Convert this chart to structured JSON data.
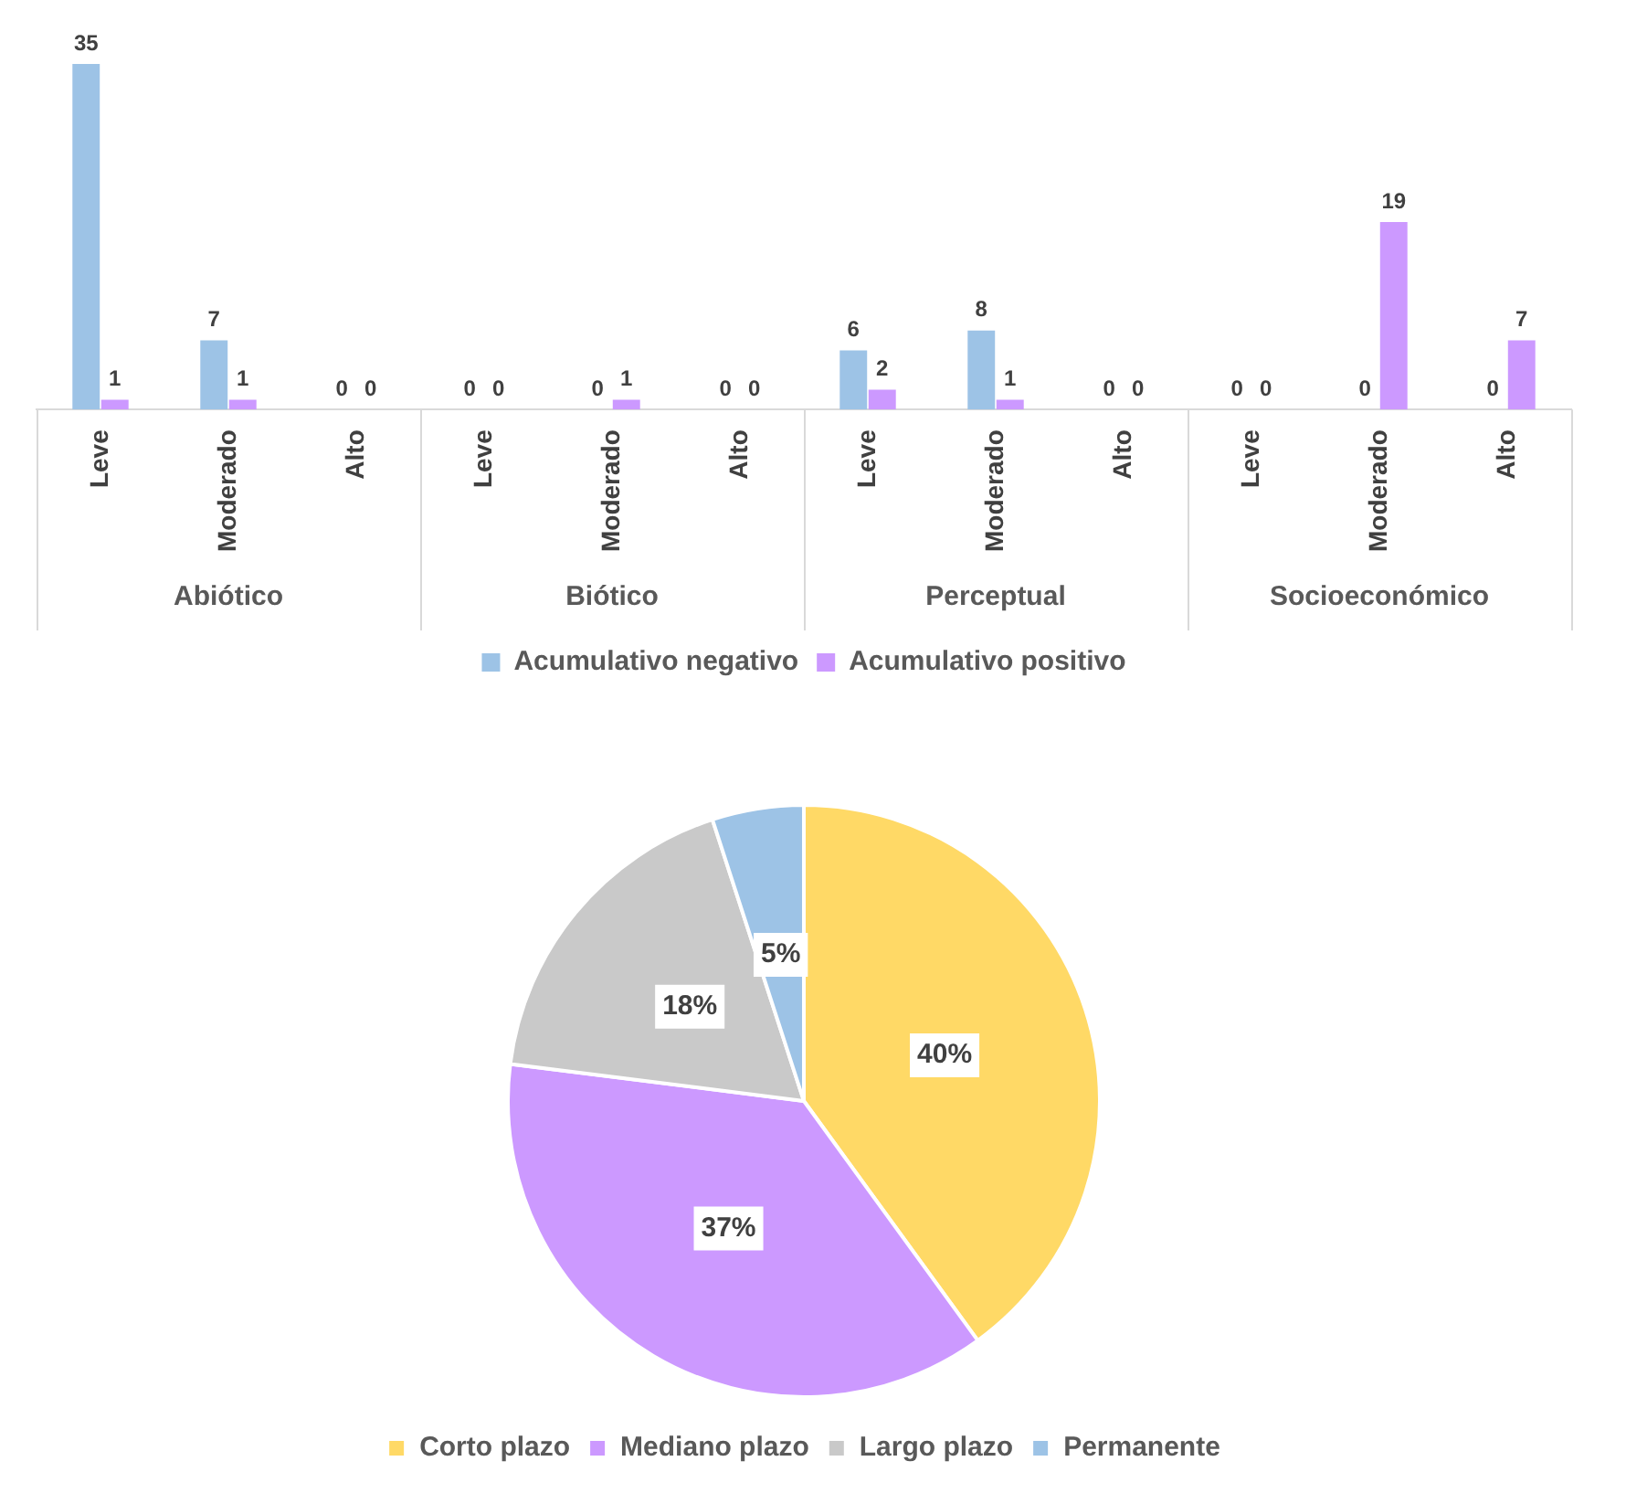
{
  "chart_data": [
    {
      "type": "bar",
      "categories": [
        "Leve",
        "Moderado",
        "Alto",
        "Leve",
        "Moderado",
        "Alto",
        "Leve",
        "Moderado",
        "Alto",
        "Leve",
        "Moderado",
        "Alto"
      ],
      "series": [
        {
          "name": "Acumulativo negativo",
          "color": "#9dc3e6",
          "values": [
            35,
            7,
            0,
            0,
            0,
            0,
            6,
            8,
            0,
            0,
            0,
            0
          ]
        },
        {
          "name": "Acumulativo positivo",
          "color": "#cc99ff",
          "values": [
            1,
            1,
            0,
            0,
            1,
            0,
            2,
            1,
            0,
            0,
            19,
            7
          ]
        }
      ],
      "annotations": [
        "Abiótico",
        "Biótico",
        "Perceptual",
        "Socioeconómico"
      ],
      "data_labels": true,
      "legend": "bottom",
      "tick_labels": "x",
      "grid": false
    },
    {
      "type": "pie",
      "categories": [
        "Corto plazo",
        "Mediano plazo",
        "Largo plazo",
        "Permanente"
      ],
      "values": [
        40,
        37,
        18,
        5
      ],
      "colors": [
        "#ffd966",
        "#cc99ff",
        "#c9c9c9",
        "#9dc3e6"
      ],
      "value_labels": [
        "40%",
        "37%",
        "18%",
        "5%"
      ],
      "legend": "bottom"
    }
  ]
}
